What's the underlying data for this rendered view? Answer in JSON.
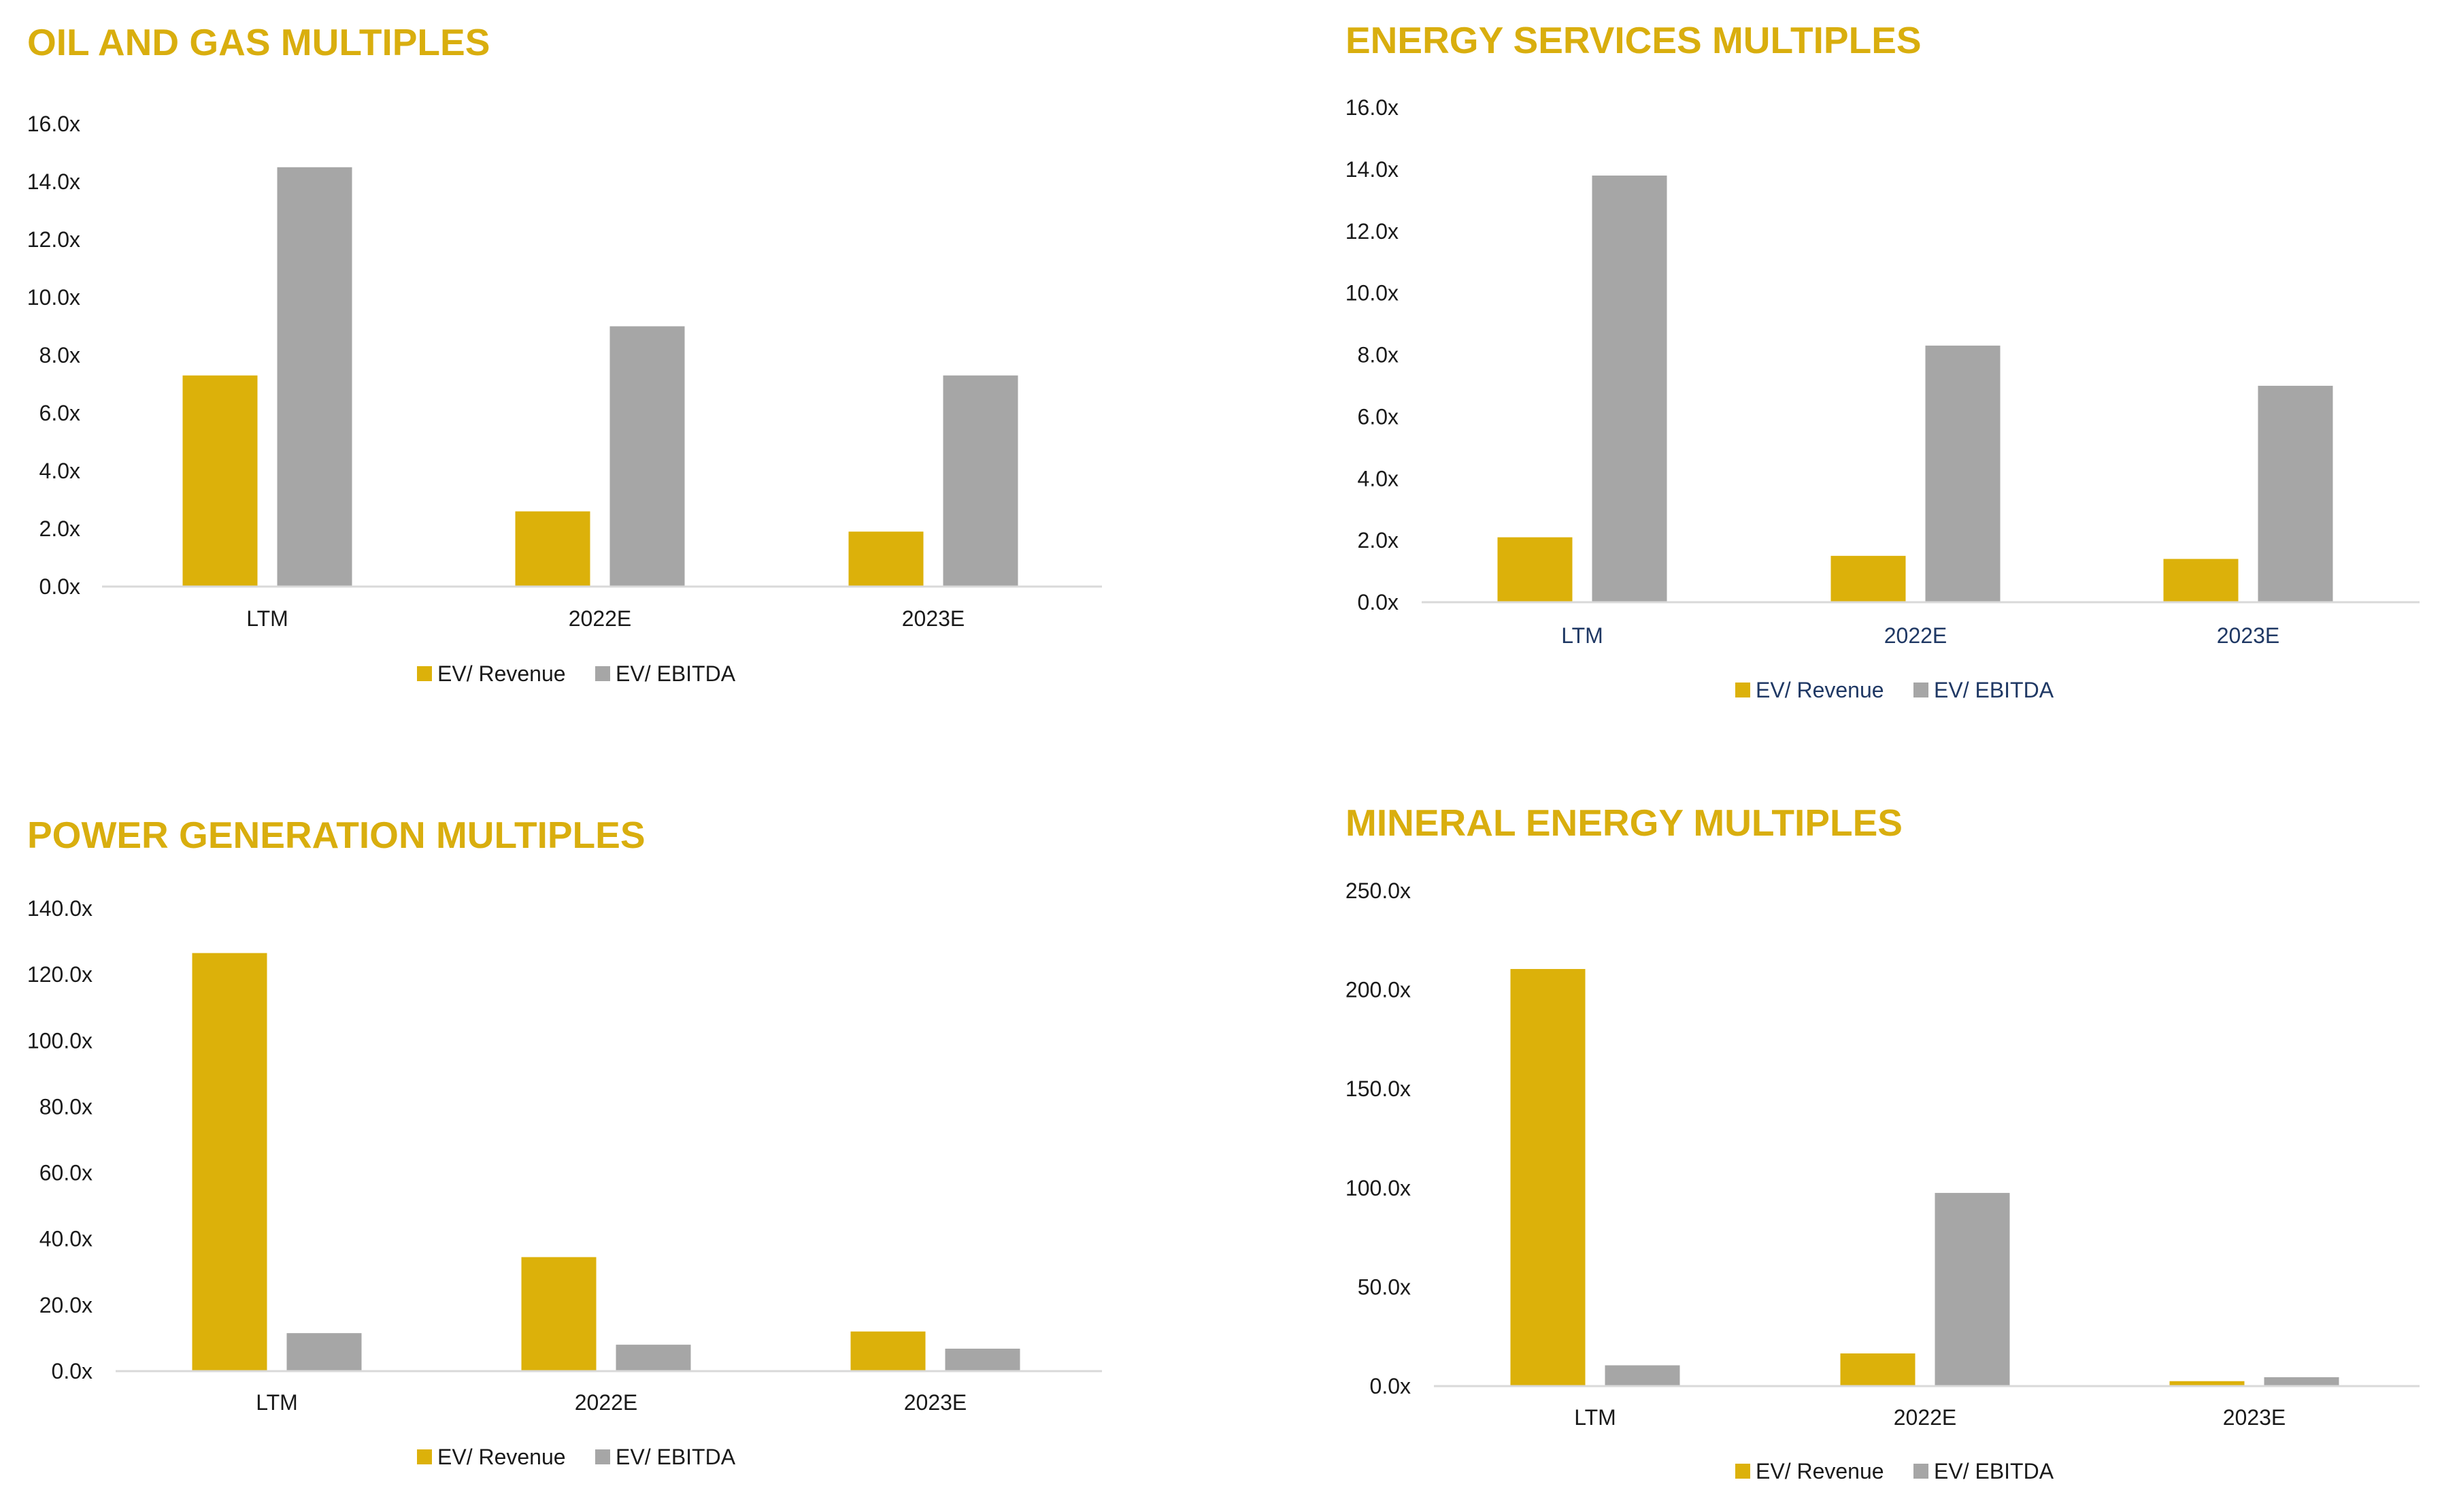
{
  "colors": {
    "title": "#D9AE0E",
    "revenue": "#DCB10A",
    "ebitda": "#A6A6A6",
    "axis_line": "#D9D9D9",
    "text": "#1a1a1a",
    "category_text_alt": "#1F3864"
  },
  "chart_data": [
    {
      "type": "bar",
      "title": "OIL AND GAS MULTIPLES",
      "categories": [
        "LTM",
        "2022E",
        "2023E"
      ],
      "series": [
        {
          "name": "EV/ Revenue",
          "values": [
            7.3,
            2.6,
            1.9
          ]
        },
        {
          "name": "EV/ EBITDA",
          "values": [
            14.5,
            9.0,
            7.3
          ]
        }
      ],
      "ylim": [
        0,
        16
      ],
      "yticks": [
        0,
        2,
        4,
        6,
        8,
        10,
        12,
        14,
        16
      ],
      "ytick_labels": [
        "0.0x",
        "2.0x",
        "4.0x",
        "6.0x",
        "8.0x",
        "10.0x",
        "12.0x",
        "14.0x",
        "16.0x"
      ],
      "xlabel": "",
      "ylabel": "",
      "grid": false,
      "legend": "bottom-center"
    },
    {
      "type": "bar",
      "title": "ENERGY SERVICES MULTIPLES",
      "categories": [
        "LTM",
        "2022E",
        "2023E"
      ],
      "series": [
        {
          "name": "EV/ Revenue",
          "values": [
            2.1,
            1.5,
            1.4
          ]
        },
        {
          "name": "EV/ EBITDA",
          "values": [
            13.8,
            8.3,
            7.0
          ]
        }
      ],
      "ylim": [
        0,
        16
      ],
      "yticks": [
        0,
        2,
        4,
        6,
        8,
        10,
        12,
        14,
        16
      ],
      "ytick_labels": [
        "0.0x",
        "2.0x",
        "4.0x",
        "6.0x",
        "8.0x",
        "10.0x",
        "12.0x",
        "14.0x",
        "16.0x"
      ],
      "xlabel": "",
      "ylabel": "",
      "grid": false,
      "legend": "bottom-center"
    },
    {
      "type": "bar",
      "title": "POWER GENERATION MULTIPLES",
      "categories": [
        "LTM",
        "2022E",
        "2023E"
      ],
      "series": [
        {
          "name": "EV/ Revenue",
          "values": [
            126.5,
            34.5,
            12.0
          ]
        },
        {
          "name": "EV/ EBITDA",
          "values": [
            11.5,
            8.0,
            6.8
          ]
        }
      ],
      "ylim": [
        0,
        140
      ],
      "yticks": [
        0,
        20,
        40,
        60,
        80,
        100,
        120,
        140
      ],
      "ytick_labels": [
        "0.0x",
        "20.0x",
        "40.0x",
        "60.0x",
        "80.0x",
        "100.0x",
        "120.0x",
        "140.0x"
      ],
      "xlabel": "",
      "ylabel": "",
      "grid": false,
      "legend": "bottom-center"
    },
    {
      "type": "bar",
      "title": "MINERAL ENERGY MULTIPLES",
      "categories": [
        "LTM",
        "2022E",
        "2023E"
      ],
      "series": [
        {
          "name": "EV/ Revenue",
          "values": [
            210.5,
            16.5,
            2.5
          ]
        },
        {
          "name": "EV/ EBITDA",
          "values": [
            10.5,
            97.5,
            4.5
          ]
        }
      ],
      "ylim": [
        0,
        250
      ],
      "yticks": [
        0,
        50,
        100,
        150,
        200,
        250
      ],
      "ytick_labels": [
        "0.0x",
        "50.0x",
        "100.0x",
        "150.0x",
        "200.0x",
        "250.0x"
      ],
      "xlabel": "",
      "ylabel": "",
      "grid": false,
      "legend": "bottom-center"
    }
  ]
}
